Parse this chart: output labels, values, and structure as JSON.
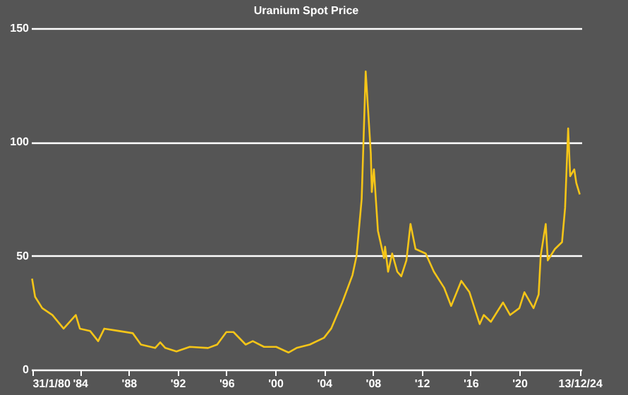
{
  "chart_data": {
    "type": "line",
    "title": "Uranium Spot Price",
    "x": [
      "1980-01-31",
      "1980-05",
      "1980-12",
      "1981-10",
      "1982-09",
      "1983-09",
      "1984-01",
      "1984-11",
      "1985-07",
      "1986-01",
      "1987-03",
      "1988-05",
      "1989-01",
      "1990-03",
      "1990-08",
      "1991-01",
      "1991-12",
      "1993-01",
      "1994-07",
      "1995-04",
      "1996-01",
      "1996-08",
      "1997-08",
      "1998-03",
      "1999-02",
      "2000-02",
      "2001-02",
      "2001-10",
      "2002-11",
      "2004-01",
      "2004-08",
      "2005-07",
      "2006-05",
      "2006-09",
      "2007-02",
      "2007-06",
      "2007-11",
      "2007-12",
      "2008-02",
      "2008-06",
      "2008-12",
      "2009-01",
      "2009-04",
      "2009-08",
      "2010-01",
      "2010-05",
      "2010-10",
      "2011-02",
      "2011-07",
      "2012-05",
      "2013-01",
      "2013-11",
      "2014-06",
      "2015-04",
      "2015-12",
      "2016-10",
      "2017-02",
      "2017-09",
      "2018-09",
      "2019-04",
      "2020-01",
      "2020-06",
      "2021-03",
      "2021-08",
      "2021-10",
      "2022-03",
      "2022-05",
      "2022-12",
      "2023-07",
      "2023-10",
      "2024-01",
      "2024-03",
      "2024-07",
      "2024-09",
      "2024-12-13"
    ],
    "series": [
      {
        "color": "#f5c518",
        "values": [
          40,
          32,
          27,
          24,
          18,
          24,
          18,
          17,
          12.5,
          18,
          17,
          16,
          11,
          9.5,
          12,
          9.5,
          8,
          10,
          9.5,
          11,
          16.5,
          16.5,
          11,
          12.5,
          10,
          10,
          7.5,
          9.5,
          11,
          14,
          18,
          29.5,
          41.5,
          50,
          75,
          131,
          95,
          78,
          88,
          61,
          49,
          54,
          43,
          51,
          43,
          41,
          48,
          64,
          53,
          51,
          43,
          36,
          28,
          39,
          34,
          20,
          24,
          21,
          29.5,
          24,
          27,
          34,
          27,
          33,
          50,
          64,
          48,
          53,
          56,
          71,
          106,
          85,
          88,
          82,
          77
        ]
      }
    ],
    "xlim": [
      "1980-01-01",
      "2025-02-01"
    ],
    "xticks": [
      {
        "value": "1980-01-31",
        "label": "31/1/80"
      },
      {
        "value": "1984-01-01",
        "label": "'84"
      },
      {
        "value": "1988-01-01",
        "label": "'88"
      },
      {
        "value": "1992-01-01",
        "label": "'92"
      },
      {
        "value": "1996-01-01",
        "label": "'96"
      },
      {
        "value": "2000-01-01",
        "label": "'00"
      },
      {
        "value": "2004-01-01",
        "label": "'04"
      },
      {
        "value": "2008-01-01",
        "label": "'08"
      },
      {
        "value": "2012-01-01",
        "label": "'12"
      },
      {
        "value": "2016-01-01",
        "label": "'16"
      },
      {
        "value": "2020-01-01",
        "label": "'20"
      },
      {
        "value": "2024-12-13",
        "label": "13/12/24"
      }
    ],
    "ylim": [
      0,
      150
    ],
    "yticks": [
      0,
      50,
      100,
      150
    ],
    "grid": "y",
    "legend": false,
    "marker": "none",
    "line_style": "solid"
  }
}
